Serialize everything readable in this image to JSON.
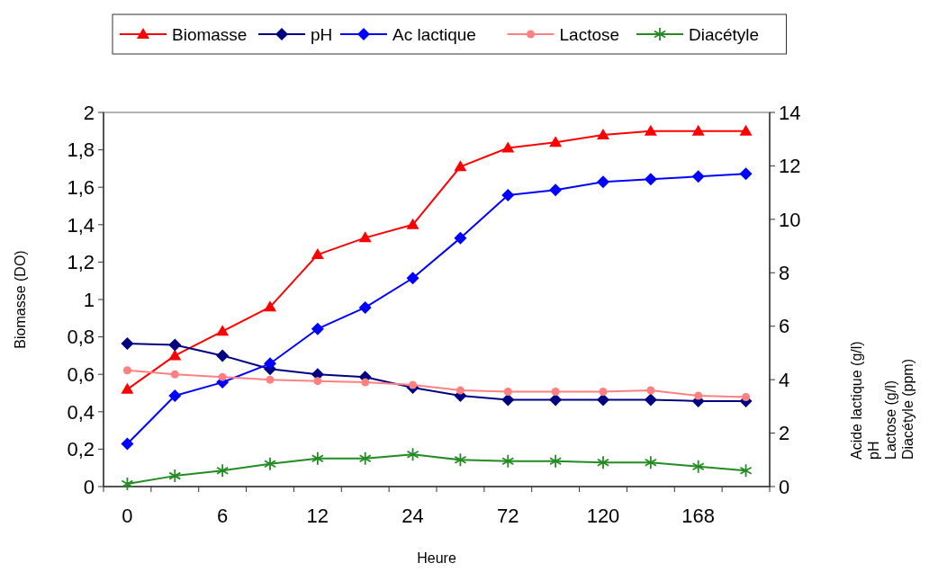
{
  "chart_data": {
    "type": "line",
    "xlabel": "Heure",
    "ylabel": "Biomasse (DO)",
    "y2label": "Acide lactique (g/l)\npH\nLactose (g/l)\nDiacétyle (ppm)",
    "categories": [
      "0",
      null,
      "6",
      null,
      "12",
      null,
      "24",
      null,
      "72",
      null,
      "120",
      null,
      "168",
      null
    ],
    "ylim": [
      0,
      2
    ],
    "yticks": [
      0,
      {
        "value": 0.2,
        "label": "0,2"
      },
      {
        "value": 0.4,
        "label": "0,4"
      },
      {
        "value": 0.6,
        "label": "0,6"
      },
      {
        "value": 0.8,
        "label": "0,8"
      },
      1,
      {
        "value": 1.2,
        "label": "1,2"
      },
      {
        "value": 1.4,
        "label": "1,4"
      },
      {
        "value": 1.6,
        "label": "1,6"
      },
      {
        "value": 1.8,
        "label": "1,8"
      },
      2
    ],
    "y2lim": [
      0,
      14
    ],
    "y2ticks": [
      0,
      2,
      4,
      6,
      8,
      10,
      12,
      14
    ],
    "grid": false,
    "legend": "top",
    "series": [
      {
        "name": "Biomasse",
        "color": "#ff0000",
        "marker": "triangle",
        "values": [
          0.52,
          0.7,
          0.83,
          0.96,
          1.24,
          1.33,
          1.4,
          1.71,
          1.81,
          1.84,
          1.88,
          1.9,
          1.9,
          1.9
        ]
      },
      {
        "name": "pH",
        "color": "#000080",
        "marker": "diamond",
        "axis": "y2",
        "values": [
          5.35,
          5.3,
          4.9,
          4.4,
          4.2,
          4.1,
          3.7,
          3.4,
          3.25,
          3.25,
          3.25,
          3.25,
          3.2,
          3.2
        ]
      },
      {
        "name": "Ac lactique",
        "color": "#0000ff",
        "marker": "diamond",
        "axis": "y2",
        "values": [
          1.6,
          3.4,
          3.9,
          4.6,
          5.9,
          6.7,
          7.8,
          9.3,
          10.9,
          11.1,
          11.4,
          11.5,
          11.6,
          11.7
        ]
      },
      {
        "name": "Lactose",
        "color": "#ff8080",
        "marker": "circle",
        "axis": "y2",
        "values": [
          4.35,
          4.2,
          4.1,
          4.0,
          3.95,
          3.9,
          3.8,
          3.6,
          3.55,
          3.55,
          3.55,
          3.6,
          3.4,
          3.35
        ]
      },
      {
        "name": "Diacétyle",
        "color": "#228b22",
        "marker": "cross",
        "axis": "y2",
        "values": [
          0.1,
          0.4,
          0.6,
          0.85,
          1.05,
          1.05,
          1.2,
          1.0,
          0.95,
          0.95,
          0.9,
          0.9,
          0.75,
          0.6
        ]
      }
    ]
  }
}
